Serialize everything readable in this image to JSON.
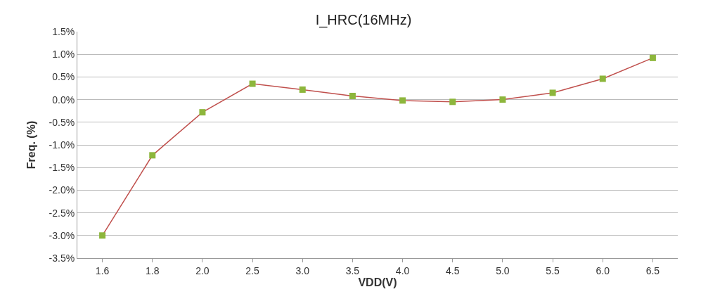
{
  "chart_data": {
    "type": "line",
    "title": "I_HRC(16MHz)",
    "xlabel": "VDD(V)",
    "ylabel": "Freq. (%)",
    "categories": [
      "1.6",
      "1.8",
      "2.0",
      "2.5",
      "3.0",
      "3.5",
      "4.0",
      "4.5",
      "5.0",
      "5.5",
      "6.0",
      "6.5"
    ],
    "series": [
      {
        "color": "#c0504d",
        "colors": [
          "#8db63c",
          "#8db63c",
          "#8db63c",
          "#8db63c",
          "#8db63c",
          "#8db63c",
          "#8db63c",
          "#8db63c",
          "#8db63c",
          "#8db63c",
          "#8db63c",
          "#8db63c"
        ],
        "values": [
          -3.0,
          -1.23,
          -0.28,
          0.35,
          0.22,
          0.08,
          -0.02,
          -0.05,
          0.0,
          0.15,
          0.46,
          0.92
        ]
      }
    ],
    "ylim": [
      -3.5,
      1.5
    ],
    "yticks": [
      {
        "value": -3.5,
        "label": "-3.5%"
      },
      {
        "value": -3.0,
        "label": "-3.0%"
      },
      {
        "value": -2.5,
        "label": "-2.5%"
      },
      {
        "value": -2.0,
        "label": "-2.0%"
      },
      {
        "value": -1.5,
        "label": "-1.5%"
      },
      {
        "value": -1.0,
        "label": "-1.0%"
      },
      {
        "value": -0.5,
        "label": "-0.5%"
      },
      {
        "value": 0.0,
        "label": "0.0%"
      },
      {
        "value": 0.5,
        "label": "0.5%"
      },
      {
        "value": 1.0,
        "label": "1.0%"
      },
      {
        "value": 1.5,
        "label": "1.5%"
      }
    ],
    "grid": "y",
    "marker": "square",
    "line_style": "solid"
  }
}
